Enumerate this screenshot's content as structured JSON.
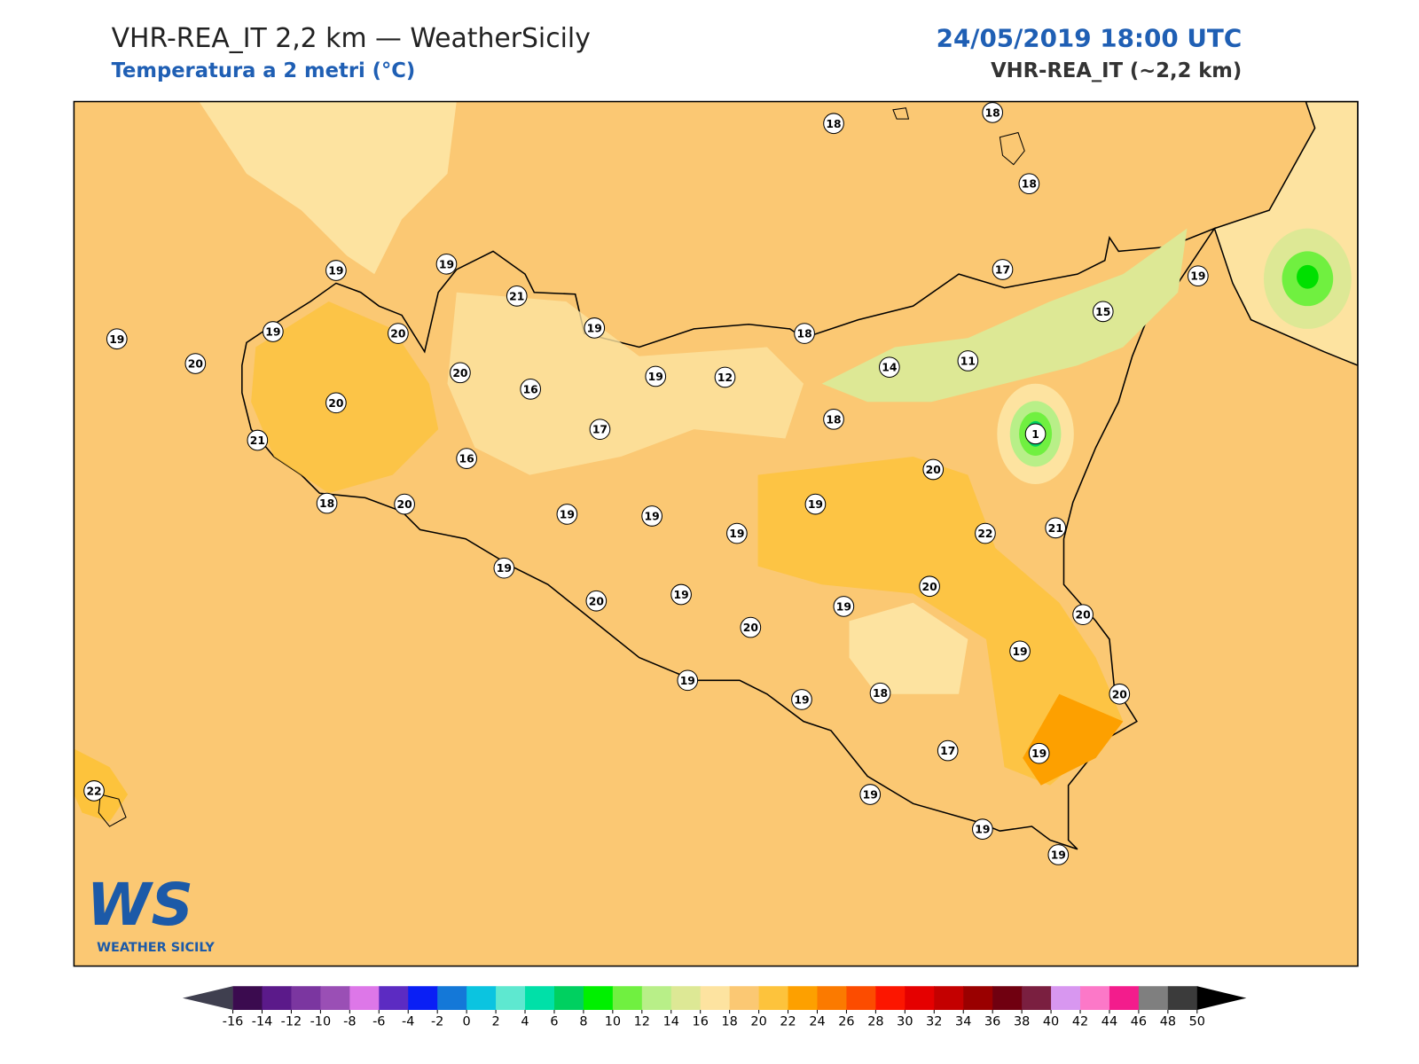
{
  "header": {
    "title": "VHR-REA_IT 2,2 km — WeatherSicily",
    "subtitle": "Temperatura a 2 metri (°C)",
    "datetime": "24/05/2019 18:00 UTC",
    "model": "VHR-REA_IT (~2,2 km)"
  },
  "stations": [
    18,
    18,
    18,
    19,
    19,
    21,
    17,
    19,
    15,
    19,
    19,
    20,
    19,
    18,
    20,
    20,
    19,
    12,
    14,
    11,
    20,
    16,
    18,
    1,
    17,
    21,
    16,
    20,
    18,
    20,
    19,
    19,
    19,
    19,
    22,
    21,
    19,
    20,
    20,
    19,
    19,
    20,
    20,
    19,
    19,
    18,
    19,
    20,
    17,
    19,
    22,
    19,
    19,
    19
  ],
  "colorbar": {
    "ticks": [
      -16,
      -14,
      -12,
      -10,
      -8,
      -6,
      -4,
      -2,
      0,
      2,
      4,
      6,
      8,
      10,
      12,
      14,
      16,
      18,
      20,
      22,
      24,
      26,
      28,
      30,
      32,
      34,
      36,
      38,
      40,
      42,
      44,
      46,
      48,
      50
    ],
    "colors": [
      "#3b0b4f",
      "#5b1a8a",
      "#7b36a0",
      "#9a4fb5",
      "#dd77e8",
      "#5c2bc2",
      "#0a1ff5",
      "#1478d8",
      "#0bc4e0",
      "#5ee8d0",
      "#00e0a8",
      "#00d060",
      "#00f000",
      "#70f040",
      "#b8ef88",
      "#dde895",
      "#fde3a0",
      "#fbc873",
      "#fdc33c",
      "#fda000",
      "#fb7a00",
      "#fc4c00",
      "#fc1600",
      "#e50000",
      "#c40000",
      "#9a0000",
      "#700010",
      "#7a1f40",
      "#d897f0",
      "#fc78c8",
      "#f31c8c",
      "#7f7f7f",
      "#3b3b3b"
    ],
    "under": "#3f3f4f",
    "over": "#000000"
  },
  "logo": {
    "mark": "WS",
    "text": "WEATHER SICILY"
  }
}
